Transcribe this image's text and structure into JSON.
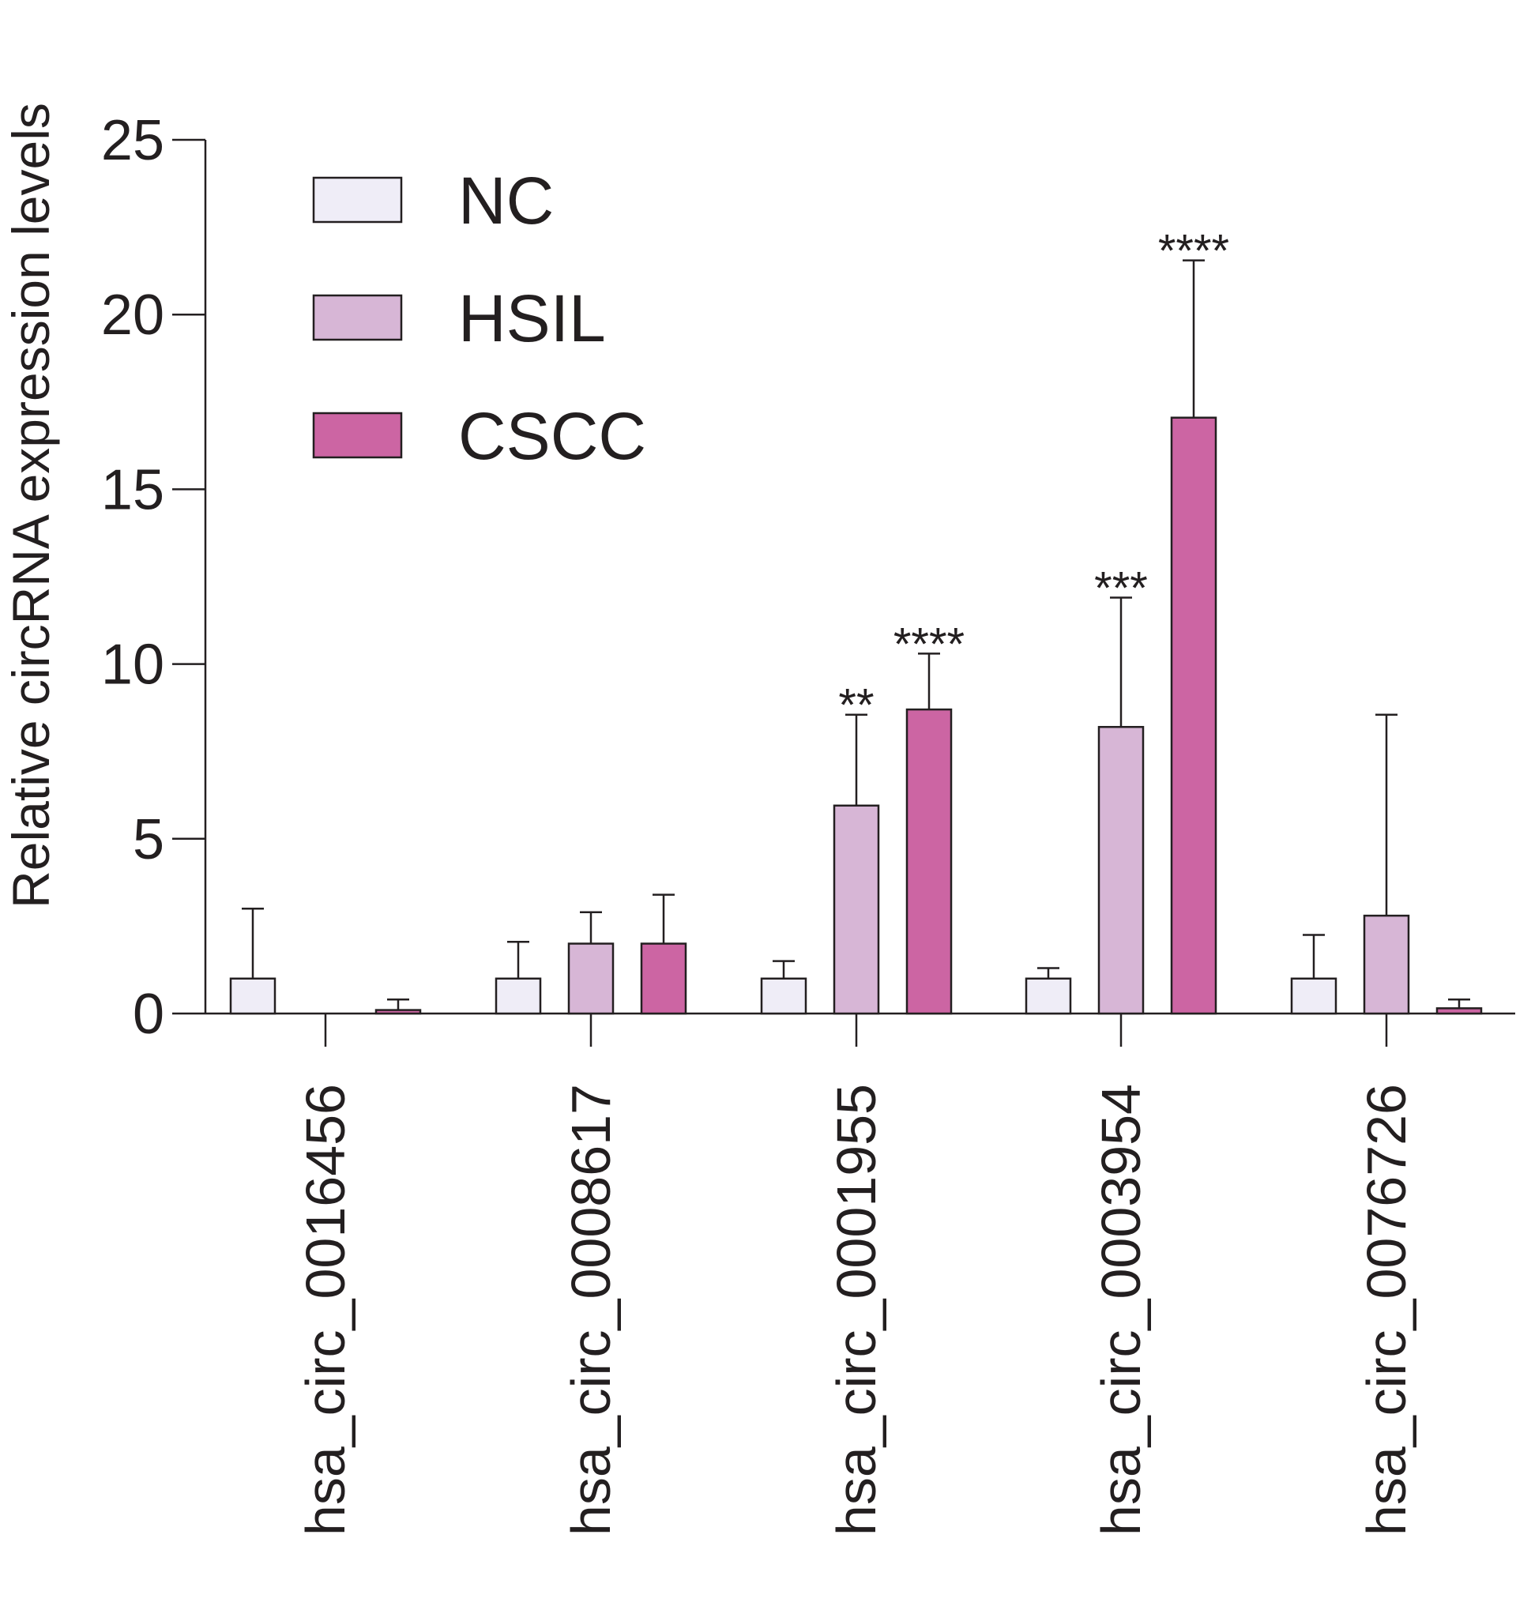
{
  "chart_data": {
    "type": "bar",
    "title": "",
    "xlabel": "",
    "ylabel": "Relative circRNA expression levels",
    "ylim": [
      0,
      25
    ],
    "yticks": [
      "0",
      "5",
      "10",
      "15",
      "20",
      "25"
    ],
    "categories": [
      "hsa_circ_0016456",
      "hsa_circ_0008617",
      "hsa_circ_0001955",
      "hsa_circ_0003954",
      "hsa_circ_0076726"
    ],
    "series": [
      {
        "name": "NC",
        "color": "#efedf7",
        "values": [
          1.0,
          1.0,
          1.0,
          1.0,
          1.0
        ],
        "errors": [
          2.0,
          1.05,
          0.5,
          0.3,
          1.25
        ],
        "annotations": [
          "",
          "",
          "",
          "",
          ""
        ]
      },
      {
        "name": "HSIL",
        "color": "#d7b6d6",
        "values": [
          0.0,
          2.0,
          5.95,
          8.2,
          2.8
        ],
        "errors": [
          0.0,
          0.9,
          2.6,
          3.7,
          5.75
        ],
        "annotations": [
          "",
          "",
          "**",
          "***",
          ""
        ]
      },
      {
        "name": "CSCC",
        "color": "#cc65a3",
        "values": [
          0.1,
          2.0,
          8.7,
          17.05,
          0.15
        ],
        "errors": [
          0.3,
          1.4,
          1.6,
          4.5,
          0.25
        ],
        "annotations": [
          "",
          "",
          "****",
          "****",
          ""
        ]
      }
    ],
    "legend": {
      "position": "top-left",
      "entries": [
        "NC",
        "HSIL",
        "CSCC"
      ]
    },
    "grid": false
  }
}
